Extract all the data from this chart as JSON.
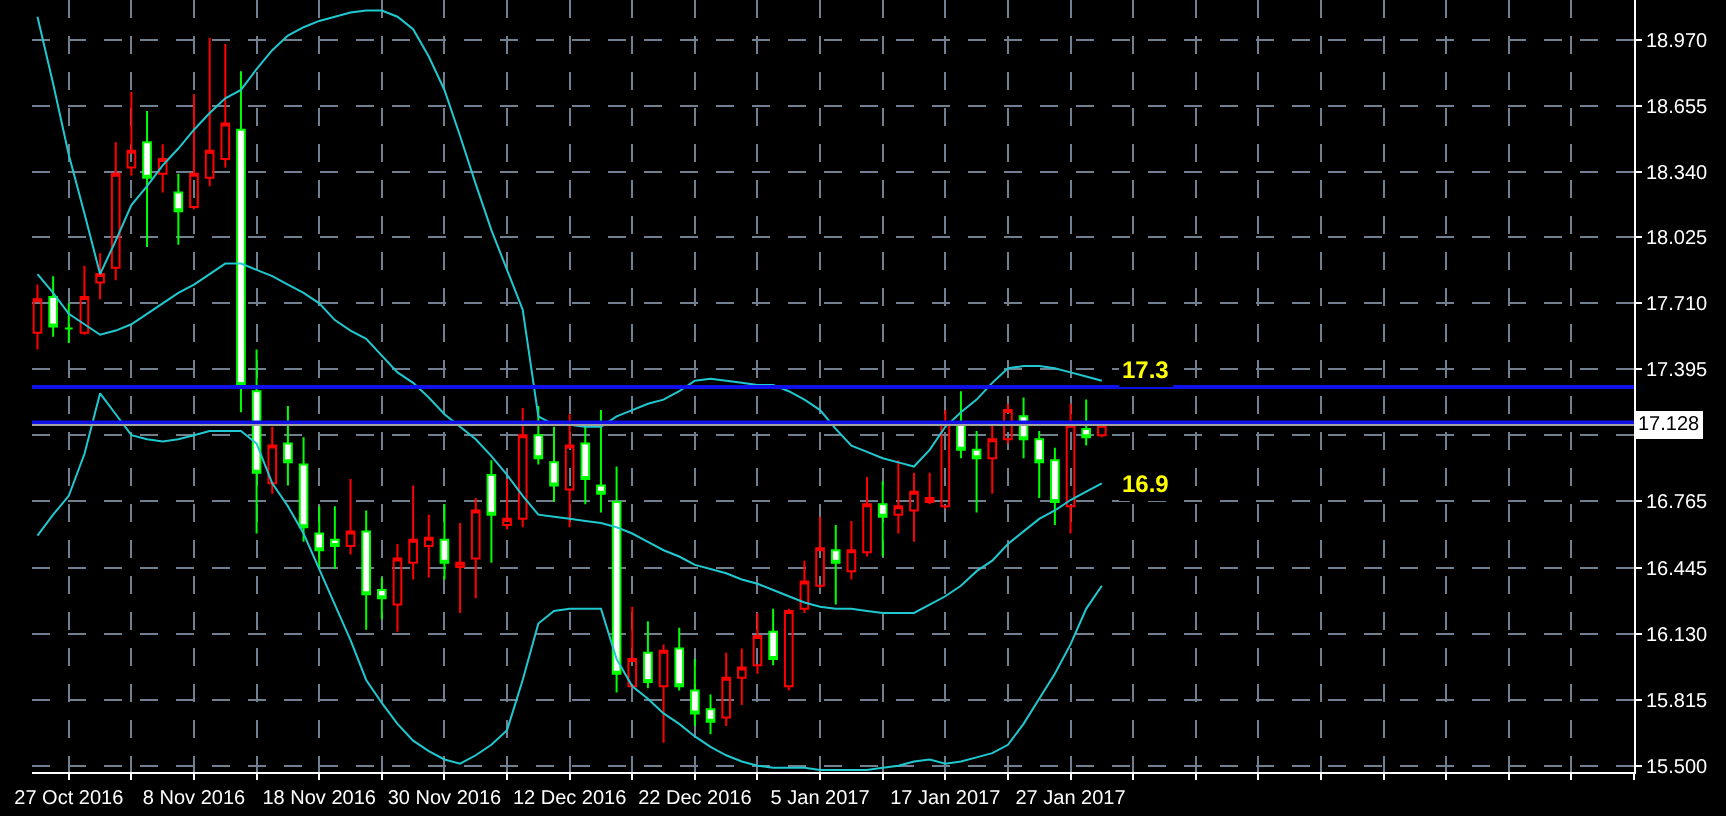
{
  "chart_data": {
    "type": "candlestick",
    "categories": [
      null,
      null,
      "27 Oct 2016",
      null,
      null,
      null,
      null,
      null,
      null,
      null,
      "8 Nov 2016",
      null,
      null,
      null,
      null,
      null,
      null,
      null,
      "18 Nov 2016",
      null,
      null,
      null,
      null,
      null,
      null,
      null,
      "30 Nov 2016",
      null,
      null,
      null,
      null,
      null,
      null,
      null,
      "12 Dec 2016",
      null,
      null,
      null,
      null,
      null,
      null,
      null,
      "22 Dec 2016",
      null,
      null,
      null,
      null,
      null,
      null,
      null,
      "5 Jan 2017",
      null,
      null,
      null,
      null,
      null,
      null,
      null,
      "17 Jan 2017",
      null,
      null,
      null,
      null,
      null,
      null,
      null,
      "27 Jan 2017",
      null,
      null
    ],
    "series": [
      {
        "type": "line",
        "color": "#20c8d0",
        "values": [
          19.08,
          18.76,
          18.42,
          18.14,
          17.85,
          18.01,
          18.18,
          18.27,
          18.37,
          18.45,
          18.54,
          18.62,
          18.69,
          18.73,
          18.83,
          18.92,
          18.99,
          19.03,
          19.06,
          19.08,
          19.1,
          19.11,
          19.11,
          19.08,
          19.02,
          18.89,
          18.73,
          18.51,
          18.28,
          18.06,
          17.87,
          17.68,
          17.17,
          17.13,
          17.13,
          17.12,
          17.12,
          17.17,
          17.2,
          17.23,
          17.25,
          17.29,
          17.34,
          17.35,
          17.34,
          17.33,
          17.32,
          17.32,
          17.29,
          17.25,
          17.2,
          17.11,
          17.03,
          17.0,
          16.97,
          16.95,
          16.93,
          17.01,
          17.12,
          17.19,
          17.25,
          17.33,
          17.4,
          17.41,
          17.41,
          17.4,
          17.38,
          17.36,
          17.34
        ]
      },
      {
        "type": "line",
        "color": "#20c8d0",
        "values": [
          17.85,
          17.76,
          17.66,
          17.61,
          17.56,
          17.58,
          17.61,
          17.66,
          17.71,
          17.76,
          17.8,
          17.85,
          17.9,
          17.9,
          17.87,
          17.84,
          17.8,
          17.76,
          17.71,
          17.63,
          17.58,
          17.54,
          17.46,
          17.38,
          17.33,
          17.26,
          17.18,
          17.12,
          17.06,
          16.98,
          16.89,
          16.79,
          16.7,
          16.69,
          16.68,
          16.67,
          16.66,
          16.64,
          16.61,
          16.57,
          16.53,
          16.5,
          16.46,
          16.44,
          16.42,
          16.39,
          16.37,
          16.34,
          16.31,
          16.28,
          16.26,
          16.25,
          16.25,
          16.24,
          16.23,
          16.23,
          16.23,
          16.27,
          16.31,
          16.36,
          16.43,
          16.48,
          16.56,
          16.62,
          16.68,
          16.72,
          16.77,
          16.81,
          16.85
        ]
      },
      {
        "type": "line",
        "color": "#20c8d0",
        "values": [
          16.6,
          16.7,
          16.79,
          16.99,
          17.28,
          17.18,
          17.08,
          17.06,
          17.05,
          17.06,
          17.08,
          17.1,
          17.1,
          17.1,
          17.04,
          16.85,
          16.74,
          16.61,
          16.44,
          16.27,
          16.1,
          15.91,
          15.8,
          15.7,
          15.62,
          15.57,
          15.53,
          15.51,
          15.55,
          15.6,
          15.67,
          15.91,
          16.18,
          16.24,
          16.25,
          16.25,
          16.25,
          16.01,
          15.88,
          15.82,
          15.75,
          15.7,
          15.64,
          15.59,
          15.55,
          15.52,
          15.5,
          15.49,
          15.49,
          15.49,
          15.48,
          15.48,
          15.48,
          15.48,
          15.49,
          15.5,
          15.52,
          15.53,
          15.51,
          15.52,
          15.54,
          15.56,
          15.6,
          15.7,
          15.82,
          15.94,
          16.08,
          16.25,
          16.36
        ]
      },
      {
        "type": "candlestick",
        "colors": [
          "#ff0000",
          "#00ff00",
          "#00ff00",
          "#ff0000",
          "#ff0000",
          "#ff0000",
          "#ff0000",
          "#00ff00",
          "#ff0000",
          "#00ff00",
          "#ff0000",
          "#ff0000",
          "#ff0000",
          "#00ff00",
          "#00ff00",
          "#ff0000",
          "#00ff00",
          "#00ff00",
          "#00ff00",
          "#00ff00",
          "#ff0000",
          "#00ff00",
          "#00ff00",
          "#ff0000",
          "#ff0000",
          "#ff0000",
          "#00ff00",
          "#ff0000",
          "#ff0000",
          "#00ff00",
          "#ff0000",
          "#ff0000",
          "#00ff00",
          "#00ff00",
          "#ff0000",
          "#00ff00",
          "#00ff00",
          "#00ff00",
          "#ff0000",
          "#00ff00",
          "#ff0000",
          "#00ff00",
          "#00ff00",
          "#00ff00",
          "#ff0000",
          "#ff0000",
          "#ff0000",
          "#00ff00",
          "#ff0000",
          "#ff0000",
          "#ff0000",
          "#00ff00",
          "#ff0000",
          "#ff0000",
          "#00ff00",
          "#ff0000",
          "#ff0000",
          "#ff0000",
          "#ff0000",
          "#00ff00",
          "#00ff00",
          "#ff0000",
          "#ff0000",
          "#00ff00",
          "#00ff00",
          "#00ff00",
          "#ff0000",
          "#00ff00",
          "#ff0000"
        ],
        "ohlc": [
          [
            17.57,
            17.8,
            17.49,
            17.73
          ],
          [
            17.74,
            17.84,
            17.55,
            17.6
          ],
          [
            17.59,
            17.71,
            17.52,
            17.59
          ],
          [
            17.57,
            17.89,
            17.56,
            17.74
          ],
          [
            17.81,
            17.95,
            17.73,
            17.85
          ],
          [
            17.88,
            18.48,
            17.82,
            18.33
          ],
          [
            18.36,
            18.72,
            18.32,
            18.44
          ],
          [
            18.48,
            18.63,
            17.98,
            18.31
          ],
          [
            18.33,
            18.47,
            18.24,
            18.4
          ],
          [
            18.24,
            18.33,
            17.99,
            18.15
          ],
          [
            18.17,
            18.71,
            18.16,
            18.33
          ],
          [
            18.31,
            18.98,
            18.27,
            18.44
          ],
          [
            18.4,
            18.95,
            18.36,
            18.57
          ],
          [
            18.54,
            18.82,
            17.19,
            17.32
          ],
          [
            17.29,
            17.49,
            16.61,
            16.9
          ],
          [
            16.85,
            17.12,
            16.8,
            17.03
          ],
          [
            17.04,
            17.22,
            16.84,
            16.95
          ],
          [
            16.94,
            17.07,
            16.57,
            16.64
          ],
          [
            16.61,
            16.74,
            16.44,
            16.53
          ],
          [
            16.58,
            16.74,
            16.44,
            16.55
          ],
          [
            16.55,
            16.87,
            16.51,
            16.62
          ],
          [
            16.62,
            16.72,
            16.15,
            16.32
          ],
          [
            16.34,
            16.4,
            16.2,
            16.3
          ],
          [
            16.27,
            16.56,
            16.14,
            16.49
          ],
          [
            16.47,
            16.84,
            16.39,
            16.58
          ],
          [
            16.55,
            16.7,
            16.4,
            16.59
          ],
          [
            16.58,
            16.75,
            16.39,
            16.47
          ],
          [
            16.45,
            16.66,
            16.23,
            16.47
          ],
          [
            16.49,
            16.78,
            16.3,
            16.72
          ],
          [
            16.89,
            16.96,
            16.47,
            16.7
          ],
          [
            16.65,
            16.87,
            16.63,
            16.68
          ],
          [
            16.68,
            17.21,
            16.64,
            17.08
          ],
          [
            17.08,
            17.22,
            16.94,
            16.97
          ],
          [
            16.95,
            17.12,
            16.76,
            16.84
          ],
          [
            16.82,
            17.18,
            16.64,
            17.03
          ],
          [
            17.04,
            17.12,
            16.75,
            16.87
          ],
          [
            16.84,
            17.2,
            16.71,
            16.8
          ],
          [
            16.76,
            16.93,
            15.85,
            15.94
          ],
          [
            15.88,
            16.26,
            15.87,
            16.01
          ],
          [
            16.04,
            16.19,
            15.87,
            15.9
          ],
          [
            15.88,
            16.08,
            15.61,
            16.05
          ],
          [
            16.06,
            16.16,
            15.86,
            15.88
          ],
          [
            15.86,
            16.01,
            15.69,
            15.75
          ],
          [
            15.77,
            15.84,
            15.65,
            15.71
          ],
          [
            15.73,
            16.04,
            15.69,
            15.92
          ],
          [
            15.92,
            16.06,
            15.79,
            15.97
          ],
          [
            15.98,
            16.23,
            15.94,
            16.12
          ],
          [
            16.14,
            16.25,
            15.98,
            16.01
          ],
          [
            15.88,
            16.25,
            15.86,
            16.24
          ],
          [
            16.25,
            16.48,
            16.23,
            16.38
          ],
          [
            16.36,
            16.69,
            16.35,
            16.54
          ],
          [
            16.53,
            16.65,
            16.27,
            16.47
          ],
          [
            16.43,
            16.67,
            16.39,
            16.53
          ],
          [
            16.52,
            16.88,
            16.5,
            16.75
          ],
          [
            16.75,
            16.86,
            16.5,
            16.69
          ],
          [
            16.7,
            16.96,
            16.61,
            16.74
          ],
          [
            16.72,
            16.9,
            16.57,
            16.81
          ],
          [
            16.76,
            16.9,
            16.75,
            16.78
          ],
          [
            16.74,
            17.2,
            16.73,
            17.14
          ],
          [
            17.14,
            17.29,
            16.97,
            17.01
          ],
          [
            17.01,
            17.1,
            16.71,
            16.97
          ],
          [
            16.97,
            17.13,
            16.8,
            17.06
          ],
          [
            17.06,
            17.23,
            17.04,
            17.2
          ],
          [
            17.17,
            17.26,
            16.97,
            17.06
          ],
          [
            17.06,
            17.1,
            16.78,
            16.95
          ],
          [
            16.96,
            17.02,
            16.65,
            16.76
          ],
          [
            16.74,
            17.23,
            16.61,
            17.13
          ],
          [
            17.11,
            17.25,
            17.03,
            17.07
          ],
          [
            17.08,
            17.14,
            17.07,
            17.13
          ]
        ]
      }
    ],
    "ylim": [
      15.47,
      19.16
    ],
    "yticks": [
      {
        "value": 15.5,
        "label": "15.500"
      },
      {
        "value": 15.815,
        "label": "15.815"
      },
      {
        "value": 16.13,
        "label": "16.130"
      },
      {
        "value": 16.445,
        "label": "16.445"
      },
      {
        "value": 16.765,
        "label": "16.765"
      },
      {
        "value": 17.08,
        "label": null
      },
      {
        "value": 17.395,
        "label": "17.395"
      },
      {
        "value": 17.71,
        "label": "17.710"
      },
      {
        "value": 18.025,
        "label": "18.025"
      },
      {
        "value": 18.34,
        "label": "18.340"
      },
      {
        "value": 18.655,
        "label": "18.655"
      },
      {
        "value": 18.97,
        "label": "18.970"
      }
    ],
    "grid": true,
    "ref_lines": [
      {
        "axis": "y",
        "value": 17.31,
        "color": "#1010e8",
        "line_style": "solid"
      },
      {
        "axis": "y",
        "value": 17.14,
        "color": "#1010e8",
        "line_style": "solid"
      },
      {
        "axis": "y",
        "value": 17.128,
        "label": "17.128",
        "color": "#a0a0a0",
        "line_style": "solid"
      }
    ],
    "annotations": [
      "17.3",
      "16.9"
    ]
  }
}
